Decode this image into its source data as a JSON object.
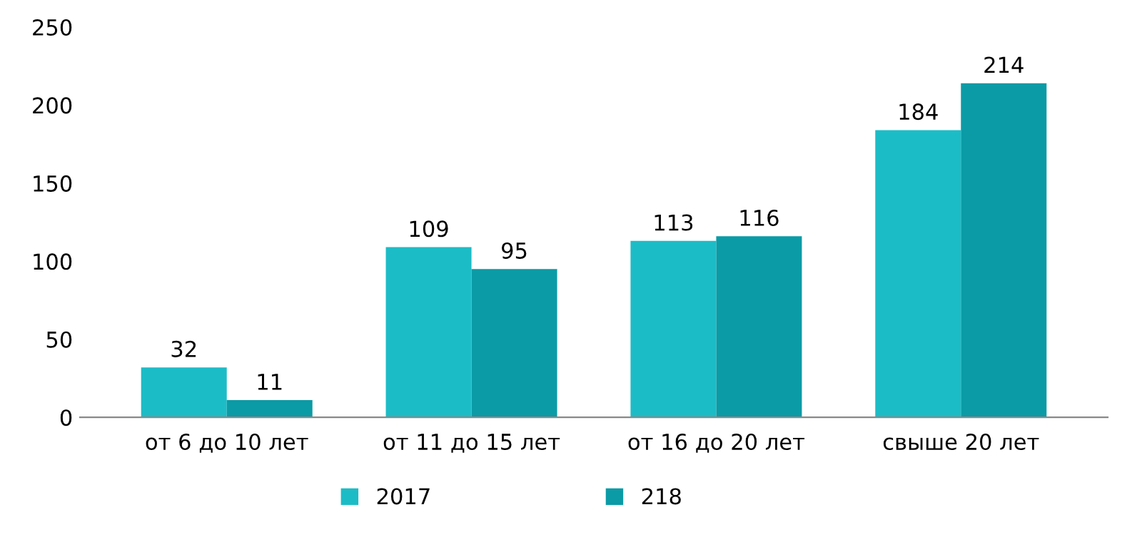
{
  "chart_data": {
    "type": "bar",
    "categories": [
      "от 6 до 10 лет",
      "от 11 до 15 лет",
      "от 16 до 20 лет",
      "свыше 20 лет"
    ],
    "series": [
      {
        "name": "2017",
        "color": "#1cbcc6",
        "values": [
          32,
          109,
          113,
          184
        ]
      },
      {
        "name": "218",
        "color": "#0b9ba6",
        "values": [
          11,
          95,
          116,
          214
        ]
      }
    ],
    "ylim": [
      0,
      250
    ],
    "yticks": [
      0,
      50,
      100,
      150,
      200,
      250
    ],
    "grid": false,
    "legend": "bottom",
    "data_labels": true
  }
}
